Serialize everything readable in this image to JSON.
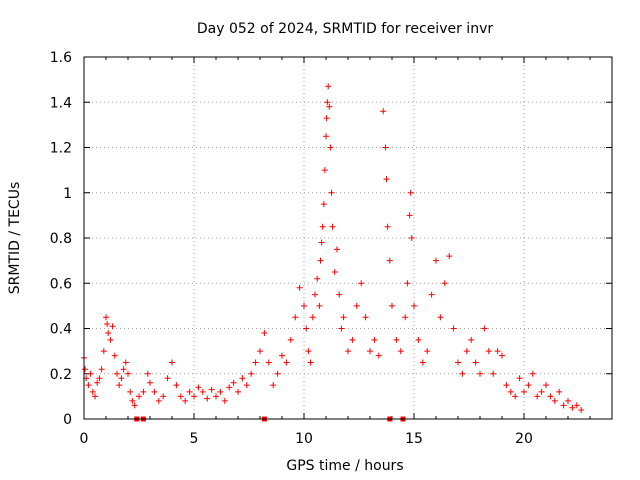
{
  "chart_data": {
    "type": "scatter",
    "title": "Day 052 of 2024, SRMTID for receiver invr",
    "xlabel": "GPS time / hours",
    "ylabel": "SRMTID / TECUs",
    "xlim": [
      0,
      24
    ],
    "ylim": [
      0,
      1.6
    ],
    "x_ticks": [
      0,
      5,
      10,
      15,
      20
    ],
    "x_tick_labels": [
      "0",
      "5",
      "10",
      "15",
      "20"
    ],
    "y_ticks": [
      0,
      0.2,
      0.4,
      0.6,
      0.8,
      1.0,
      1.2,
      1.4,
      1.6
    ],
    "y_tick_labels": [
      "0",
      "0.2",
      "0.4",
      "0.6",
      "0.8",
      "1",
      "1.2",
      "1.4",
      "1.6"
    ],
    "grid": true,
    "marker": "+",
    "marker_color": "#ff0000",
    "series": [
      {
        "name": "SRMTID",
        "points": [
          [
            0.0,
            0.27
          ],
          [
            0.05,
            0.22
          ],
          [
            0.1,
            0.18
          ],
          [
            0.2,
            0.15
          ],
          [
            0.3,
            0.2
          ],
          [
            0.4,
            0.12
          ],
          [
            0.5,
            0.1
          ],
          [
            0.6,
            0.16
          ],
          [
            0.7,
            0.18
          ],
          [
            0.8,
            0.22
          ],
          [
            0.9,
            0.3
          ],
          [
            1.0,
            0.45
          ],
          [
            1.05,
            0.42
          ],
          [
            1.1,
            0.38
          ],
          [
            1.2,
            0.35
          ],
          [
            1.3,
            0.41
          ],
          [
            1.4,
            0.28
          ],
          [
            1.5,
            0.2
          ],
          [
            1.6,
            0.15
          ],
          [
            1.7,
            0.18
          ],
          [
            1.8,
            0.22
          ],
          [
            1.9,
            0.25
          ],
          [
            2.0,
            0.2
          ],
          [
            2.1,
            0.12
          ],
          [
            2.2,
            0.08
          ],
          [
            2.3,
            0.06
          ],
          [
            2.5,
            0.1
          ],
          [
            2.7,
            0.12
          ],
          [
            2.9,
            0.2
          ],
          [
            3.0,
            0.16
          ],
          [
            3.2,
            0.12
          ],
          [
            3.4,
            0.08
          ],
          [
            3.6,
            0.1
          ],
          [
            3.8,
            0.18
          ],
          [
            4.0,
            0.25
          ],
          [
            4.2,
            0.15
          ],
          [
            4.4,
            0.1
          ],
          [
            4.6,
            0.08
          ],
          [
            4.8,
            0.12
          ],
          [
            5.0,
            0.1
          ],
          [
            5.2,
            0.14
          ],
          [
            5.4,
            0.12
          ],
          [
            5.6,
            0.09
          ],
          [
            5.8,
            0.13
          ],
          [
            6.0,
            0.1
          ],
          [
            6.2,
            0.12
          ],
          [
            6.4,
            0.08
          ],
          [
            6.6,
            0.14
          ],
          [
            6.8,
            0.16
          ],
          [
            7.0,
            0.12
          ],
          [
            7.2,
            0.18
          ],
          [
            7.4,
            0.15
          ],
          [
            7.6,
            0.2
          ],
          [
            7.8,
            0.25
          ],
          [
            8.0,
            0.3
          ],
          [
            8.2,
            0.38
          ],
          [
            8.4,
            0.25
          ],
          [
            8.6,
            0.15
          ],
          [
            8.8,
            0.2
          ],
          [
            9.0,
            0.28
          ],
          [
            9.2,
            0.25
          ],
          [
            9.4,
            0.35
          ],
          [
            9.6,
            0.45
          ],
          [
            9.8,
            0.58
          ],
          [
            10.0,
            0.5
          ],
          [
            10.1,
            0.4
          ],
          [
            10.2,
            0.3
          ],
          [
            10.3,
            0.25
          ],
          [
            10.4,
            0.45
          ],
          [
            10.5,
            0.55
          ],
          [
            10.6,
            0.62
          ],
          [
            10.7,
            0.5
          ],
          [
            10.75,
            0.7
          ],
          [
            10.8,
            0.78
          ],
          [
            10.85,
            0.85
          ],
          [
            10.9,
            0.95
          ],
          [
            10.95,
            1.1
          ],
          [
            11.0,
            1.25
          ],
          [
            11.03,
            1.33
          ],
          [
            11.06,
            1.4
          ],
          [
            11.1,
            1.47
          ],
          [
            11.15,
            1.38
          ],
          [
            11.2,
            1.2
          ],
          [
            11.25,
            1.0
          ],
          [
            11.3,
            0.85
          ],
          [
            11.4,
            0.65
          ],
          [
            11.5,
            0.75
          ],
          [
            11.6,
            0.55
          ],
          [
            11.7,
            0.4
          ],
          [
            11.8,
            0.45
          ],
          [
            12.0,
            0.3
          ],
          [
            12.2,
            0.35
          ],
          [
            12.4,
            0.5
          ],
          [
            12.6,
            0.6
          ],
          [
            12.8,
            0.45
          ],
          [
            13.0,
            0.3
          ],
          [
            13.2,
            0.35
          ],
          [
            13.4,
            0.28
          ],
          [
            13.6,
            1.36
          ],
          [
            13.7,
            1.2
          ],
          [
            13.75,
            1.06
          ],
          [
            13.8,
            0.85
          ],
          [
            13.9,
            0.7
          ],
          [
            14.0,
            0.5
          ],
          [
            14.2,
            0.35
          ],
          [
            14.4,
            0.3
          ],
          [
            14.6,
            0.45
          ],
          [
            14.7,
            0.6
          ],
          [
            14.8,
            0.9
          ],
          [
            14.85,
            1.0
          ],
          [
            14.9,
            0.8
          ],
          [
            15.0,
            0.5
          ],
          [
            15.2,
            0.35
          ],
          [
            15.4,
            0.25
          ],
          [
            15.6,
            0.3
          ],
          [
            15.8,
            0.55
          ],
          [
            16.0,
            0.7
          ],
          [
            16.2,
            0.45
          ],
          [
            16.4,
            0.6
          ],
          [
            16.6,
            0.72
          ],
          [
            16.8,
            0.4
          ],
          [
            17.0,
            0.25
          ],
          [
            17.2,
            0.2
          ],
          [
            17.4,
            0.3
          ],
          [
            17.6,
            0.35
          ],
          [
            17.8,
            0.25
          ],
          [
            18.0,
            0.2
          ],
          [
            18.2,
            0.4
          ],
          [
            18.4,
            0.3
          ],
          [
            18.6,
            0.2
          ],
          [
            18.8,
            0.3
          ],
          [
            19.0,
            0.28
          ],
          [
            19.2,
            0.15
          ],
          [
            19.4,
            0.12
          ],
          [
            19.6,
            0.1
          ],
          [
            19.8,
            0.18
          ],
          [
            20.0,
            0.12
          ],
          [
            20.2,
            0.15
          ],
          [
            20.4,
            0.2
          ],
          [
            20.6,
            0.1
          ],
          [
            20.8,
            0.12
          ],
          [
            21.0,
            0.15
          ],
          [
            21.2,
            0.1
          ],
          [
            21.4,
            0.08
          ],
          [
            21.6,
            0.12
          ],
          [
            21.8,
            0.06
          ],
          [
            22.0,
            0.08
          ],
          [
            22.2,
            0.05
          ],
          [
            22.4,
            0.06
          ],
          [
            22.6,
            0.04
          ]
        ]
      }
    ],
    "baseline_markers": {
      "style": "square",
      "color": "#ff0000",
      "x": [
        2.4,
        2.7,
        8.2,
        13.9,
        14.5
      ]
    }
  }
}
